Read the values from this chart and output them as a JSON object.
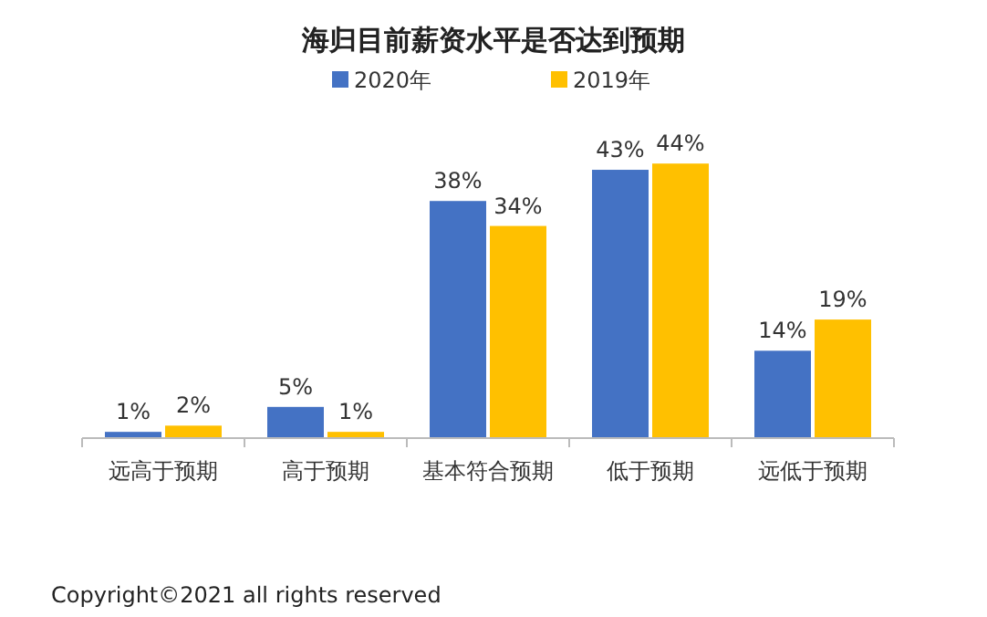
{
  "chart_data": {
    "type": "bar",
    "title": "海归目前薪资水平是否达到预期",
    "categories": [
      "远高于预期",
      "高于预期",
      "基本符合预期",
      "低于预期",
      "远低于预期"
    ],
    "series": [
      {
        "name": "2020年",
        "color": "#4472c4",
        "values": [
          1,
          5,
          38,
          43,
          14
        ],
        "value_labels": [
          "1%",
          "5%",
          "38%",
          "43%",
          "14%"
        ]
      },
      {
        "name": "2019年",
        "color": "#ffc000",
        "values": [
          2,
          1,
          34,
          44,
          19
        ],
        "value_labels": [
          "2%",
          "1%",
          "34%",
          "44%",
          "19%"
        ]
      }
    ],
    "legend": "top",
    "grid": false,
    "annotations": [
      "Copyright©2021 all rights reserved"
    ]
  }
}
